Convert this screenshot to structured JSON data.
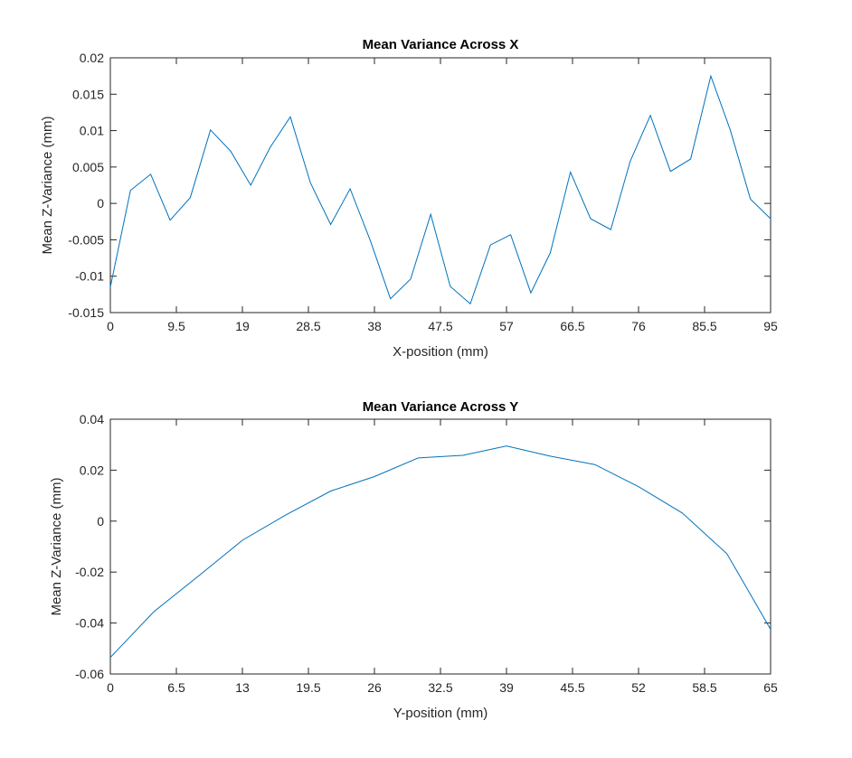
{
  "chart_data": [
    {
      "type": "line",
      "title": "Mean Variance Across X",
      "xlabel": "X-position (mm)",
      "ylabel": "Mean Z-Variance (mm)",
      "xlim": [
        0,
        95
      ],
      "ylim": [
        -0.015,
        0.02
      ],
      "xticks": [
        0,
        9.5,
        19,
        28.5,
        38,
        47.5,
        57,
        66.5,
        76,
        85.5,
        95
      ],
      "xtick_labels": [
        "0",
        "9.5",
        "19",
        "28.5",
        "38",
        "47.5",
        "57",
        "66.5",
        "76",
        "85.5",
        "95"
      ],
      "yticks": [
        -0.015,
        -0.01,
        -0.005,
        0,
        0.005,
        0.01,
        0.015,
        0.02
      ],
      "ytick_labels": [
        "-0.015",
        "-0.01",
        "-0.005",
        "0",
        "0.005",
        "0.01",
        "0.015",
        "0.02"
      ],
      "grid": false,
      "series_color": "#0072BD",
      "x": [
        0,
        2.9,
        5.8,
        8.6,
        11.5,
        14.4,
        17.3,
        20.2,
        23.0,
        25.9,
        28.8,
        31.7,
        34.5,
        37.4,
        40.3,
        43.2,
        46.1,
        48.9,
        51.8,
        54.7,
        57.6,
        60.5,
        63.3,
        66.2,
        69.1,
        72.0,
        74.8,
        77.7,
        80.6,
        83.5,
        86.4,
        89.2,
        92.1,
        95.0
      ],
      "y": [
        -0.0115,
        0.0018,
        0.004,
        -0.0023,
        0.0008,
        0.0101,
        0.0072,
        0.0025,
        0.0077,
        0.0119,
        0.0028,
        -0.0029,
        0.002,
        -0.0051,
        -0.0131,
        -0.0104,
        -0.0015,
        -0.0114,
        -0.0138,
        -0.0057,
        -0.0043,
        -0.0123,
        -0.0068,
        0.0043,
        -0.0021,
        -0.0036,
        0.0058,
        0.0121,
        0.0044,
        0.0061,
        0.0175,
        0.0101,
        0.0006,
        -0.0021
      ]
    },
    {
      "type": "line",
      "title": "Mean Variance Across Y",
      "xlabel": "Y-position (mm)",
      "ylabel": "Mean Z-Variance (mm)",
      "xlim": [
        0,
        65
      ],
      "ylim": [
        -0.06,
        0.04
      ],
      "xticks": [
        0,
        6.5,
        13,
        19.5,
        26,
        32.5,
        39,
        45.5,
        52,
        58.5,
        65
      ],
      "xtick_labels": [
        "0",
        "6.5",
        "13",
        "19.5",
        "26",
        "32.5",
        "39",
        "45.5",
        "52",
        "58.5",
        "65"
      ],
      "yticks": [
        -0.06,
        -0.04,
        -0.02,
        0,
        0.02,
        0.04
      ],
      "ytick_labels": [
        "-0.06",
        "-0.04",
        "-0.02",
        "0",
        "0.02",
        "0.04"
      ],
      "grid": false,
      "series_color": "#0072BD",
      "x": [
        0,
        4.3,
        8.7,
        13.0,
        17.3,
        21.7,
        26.0,
        30.3,
        34.7,
        39.0,
        43.3,
        47.7,
        52.0,
        56.3,
        60.7,
        65.0
      ],
      "y": [
        -0.0535,
        -0.0355,
        -0.0215,
        -0.0075,
        0.0025,
        0.0118,
        0.0175,
        0.0248,
        0.0258,
        0.0295,
        0.0255,
        0.0222,
        0.0135,
        0.0032,
        -0.0128,
        -0.0425
      ]
    }
  ]
}
